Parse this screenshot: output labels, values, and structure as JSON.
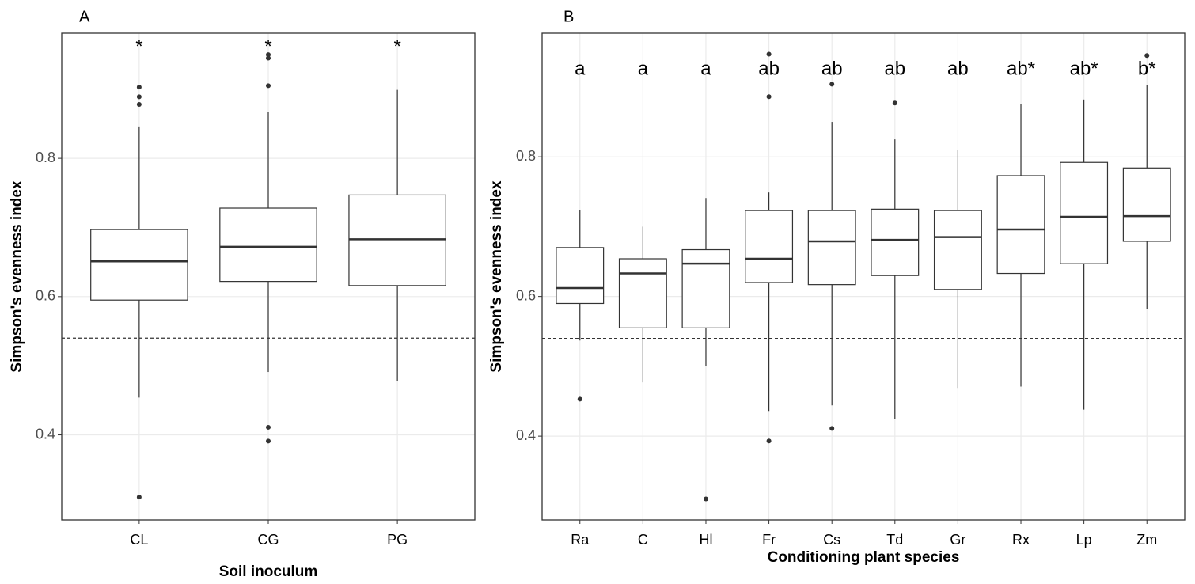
{
  "chart_data": [
    {
      "type": "box",
      "panel_label": "A",
      "xlabel": "Soil inoculum",
      "ylabel": "Simpson's evenness index",
      "categories": [
        "CL",
        "CG",
        "PG"
      ],
      "whisker_low": [
        0.454,
        0.491,
        0.478
      ],
      "q1": [
        0.595,
        0.622,
        0.616
      ],
      "median": [
        0.651,
        0.672,
        0.683
      ],
      "q3": [
        0.697,
        0.728,
        0.747
      ],
      "whisker_high": [
        0.846,
        0.867,
        0.899
      ],
      "outliers": [
        [
          0.903,
          0.889,
          0.878,
          0.31
        ],
        [
          0.95,
          0.945,
          0.905,
          0.411,
          0.391
        ],
        []
      ],
      "annotations": [
        "*",
        "*",
        "*"
      ],
      "ref_line": 0.54,
      "ylim": [
        0.277,
        0.981
      ],
      "yticks": [
        0.4,
        0.6,
        0.8
      ],
      "grid": true
    },
    {
      "type": "box",
      "panel_label": "B",
      "xlabel": "Conditioning plant species",
      "ylabel": "Simpson's evenness index",
      "categories": [
        "Ra",
        "C",
        "Hl",
        "Fr",
        "Cs",
        "Td",
        "Gr",
        "Rx",
        "Lp",
        "Zm"
      ],
      "whisker_low": [
        0.537,
        0.477,
        0.501,
        0.435,
        0.444,
        0.424,
        0.469,
        0.471,
        0.438,
        0.582
      ],
      "q1": [
        0.59,
        0.555,
        0.555,
        0.62,
        0.617,
        0.63,
        0.61,
        0.633,
        0.647,
        0.679
      ],
      "median": [
        0.612,
        0.633,
        0.647,
        0.654,
        0.679,
        0.681,
        0.685,
        0.696,
        0.714,
        0.715
      ],
      "q3": [
        0.67,
        0.654,
        0.667,
        0.723,
        0.723,
        0.725,
        0.723,
        0.773,
        0.792,
        0.784
      ],
      "whisker_high": [
        0.724,
        0.7,
        0.741,
        0.749,
        0.85,
        0.825,
        0.81,
        0.875,
        0.882,
        0.903
      ],
      "outliers": [
        [
          0.453
        ],
        [],
        [
          0.31
        ],
        [
          0.947,
          0.886,
          0.393
        ],
        [
          0.904,
          0.411
        ],
        [
          0.877
        ],
        [],
        [],
        [],
        [
          0.945
        ]
      ],
      "annotations": [
        "a",
        "a",
        "a",
        "ab",
        "ab",
        "ab",
        "ab",
        "ab*",
        "ab*",
        "b*"
      ],
      "ref_line": 0.54,
      "ylim": [
        0.28,
        0.977
      ],
      "yticks": [
        0.4,
        0.6,
        0.8
      ],
      "grid": true
    }
  ]
}
